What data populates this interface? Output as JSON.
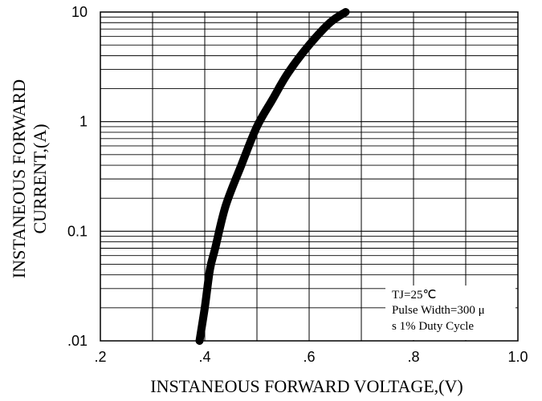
{
  "chart_data": {
    "type": "line",
    "title": "",
    "xlabel": "INSTANEOUS FORWARD VOLTAGE,(V)",
    "ylabel_lines": [
      "INSTANEOUS FORWARD",
      "CURRENT,(A)"
    ],
    "x_scale": "linear",
    "y_scale": "log",
    "xlim": [
      0.2,
      1.0
    ],
    "ylim": [
      0.01,
      10
    ],
    "x_ticks": [
      0.2,
      0.4,
      0.6,
      0.8,
      1.0
    ],
    "x_tick_labels": [
      ".2",
      ".4",
      ".6",
      ".8",
      "1.0"
    ],
    "y_ticks": [
      0.01,
      0.1,
      1,
      10
    ],
    "y_tick_labels": [
      ".01",
      "0.1",
      "1",
      "10"
    ],
    "grid": true,
    "annotation_lines": [
      "TJ=25℃",
      "Pulse Width=300 μ",
      "s 1% Duty Cycle"
    ],
    "series": [
      {
        "color": "#000000",
        "x": [
          0.39,
          0.4,
          0.41,
          0.42,
          0.44,
          0.47,
          0.5,
          0.53,
          0.56,
          0.6,
          0.64,
          0.67
        ],
        "y": [
          0.01,
          0.02,
          0.045,
          0.07,
          0.17,
          0.4,
          0.9,
          1.6,
          2.8,
          5.0,
          8.0,
          10.0
        ]
      }
    ]
  }
}
